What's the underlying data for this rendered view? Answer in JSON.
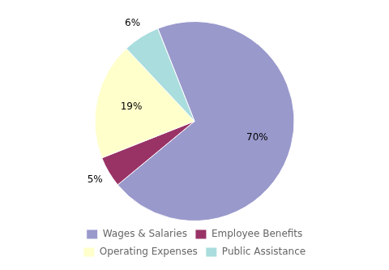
{
  "chart_data": {
    "type": "pie",
    "categories": [
      "Wages & Salaries",
      "Employee Benefits",
      "Operating Expenses",
      "Public Assistance"
    ],
    "values": [
      70,
      5,
      19,
      6
    ],
    "value_labels": [
      "70%",
      "5%",
      "19%",
      "6%"
    ],
    "colors": [
      "#9999cc",
      "#993366",
      "#ffffcc",
      "#aadddd"
    ],
    "data_labels": true,
    "legend": "bottom"
  }
}
